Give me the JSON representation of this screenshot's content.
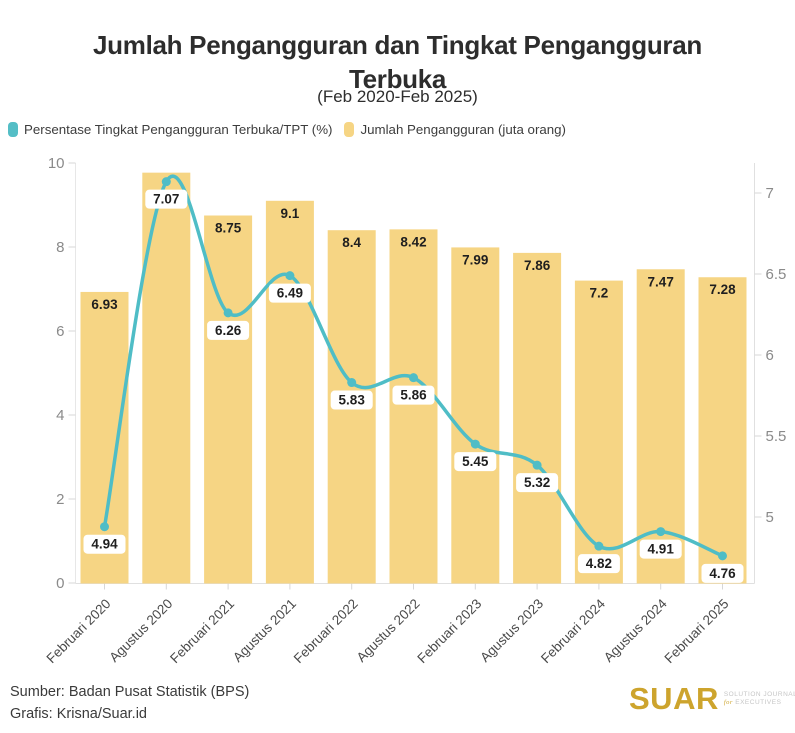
{
  "header": {
    "title_line1": "Jumlah Pengangguran dan Tingkat Pengangguran",
    "title_line2": "Terbuka",
    "subtitle": "(Feb 2020-Feb 2025)"
  },
  "legend": [
    {
      "label": "Persentase Tingkat Pengangguran Terbuka/TPT (%)",
      "color": "#54bec6"
    },
    {
      "label": "Jumlah Pengangguran (juta orang)",
      "color": "#f6d584"
    }
  ],
  "chart_data": {
    "type": "bar",
    "subtype": "bar+line combo, dual axis",
    "categories": [
      "Februari 2020",
      "Agustus 2020",
      "Februari 2021",
      "Agustus 2021",
      "Februari 2022",
      "Agustus 2022",
      "Februari 2023",
      "Agustus 2023",
      "Februari 2024",
      "Agustus 2024",
      "Februari 2025"
    ],
    "series": [
      {
        "name": "Jumlah Pengangguran (juta orang)",
        "type": "bar",
        "axis": "left",
        "color": "#f6d584",
        "values": [
          6.93,
          9.77,
          8.75,
          9.1,
          8.4,
          8.42,
          7.99,
          7.86,
          7.2,
          7.47,
          7.28
        ],
        "data_labels": [
          "6.93",
          "",
          "8.75",
          "9.1",
          "8.4",
          "8.42",
          "7.99",
          "7.86",
          "7.2",
          "7.47",
          "7.28"
        ]
      },
      {
        "name": "Persentase Tingkat Pengangguran Terbuka/TPT (%)",
        "type": "line",
        "axis": "right",
        "color": "#4fbdc6",
        "values": [
          4.94,
          7.07,
          6.26,
          6.49,
          5.83,
          5.86,
          5.45,
          5.32,
          4.82,
          4.91,
          4.76
        ],
        "data_labels": [
          "4.94",
          "7.07",
          "6.26",
          "6.49",
          "5.83",
          "5.86",
          "5.45",
          "5.32",
          "4.82",
          "4.91",
          "4.76"
        ]
      }
    ],
    "left_axis": {
      "ticks": [
        "0",
        "2",
        "4",
        "6",
        "8",
        "10"
      ],
      "range": [
        0,
        10
      ]
    },
    "right_axis": {
      "ticks": [
        "5",
        "5.5",
        "6",
        "6.5",
        "7"
      ],
      "range": [
        4.6,
        7.2
      ]
    },
    "grid": "off",
    "legend_position": "top-left",
    "title": "Jumlah Pengangguran dan Tingkat Pengangguran Terbuka",
    "subtitle": "(Feb 2020-Feb 2025)"
  },
  "footer": {
    "source": "Sumber: Badan Pusat Statistik (BPS)",
    "credit": "Grafis: Krisna/Suar.id"
  },
  "logo": {
    "name": "SUAR",
    "color": "#cda42d",
    "tagline_line1": "SOLUTION JOURNALISM",
    "tagline_for": "for",
    "tagline_line2": "EXECUTIVES",
    "tagline_color": "#c6c6c6"
  }
}
